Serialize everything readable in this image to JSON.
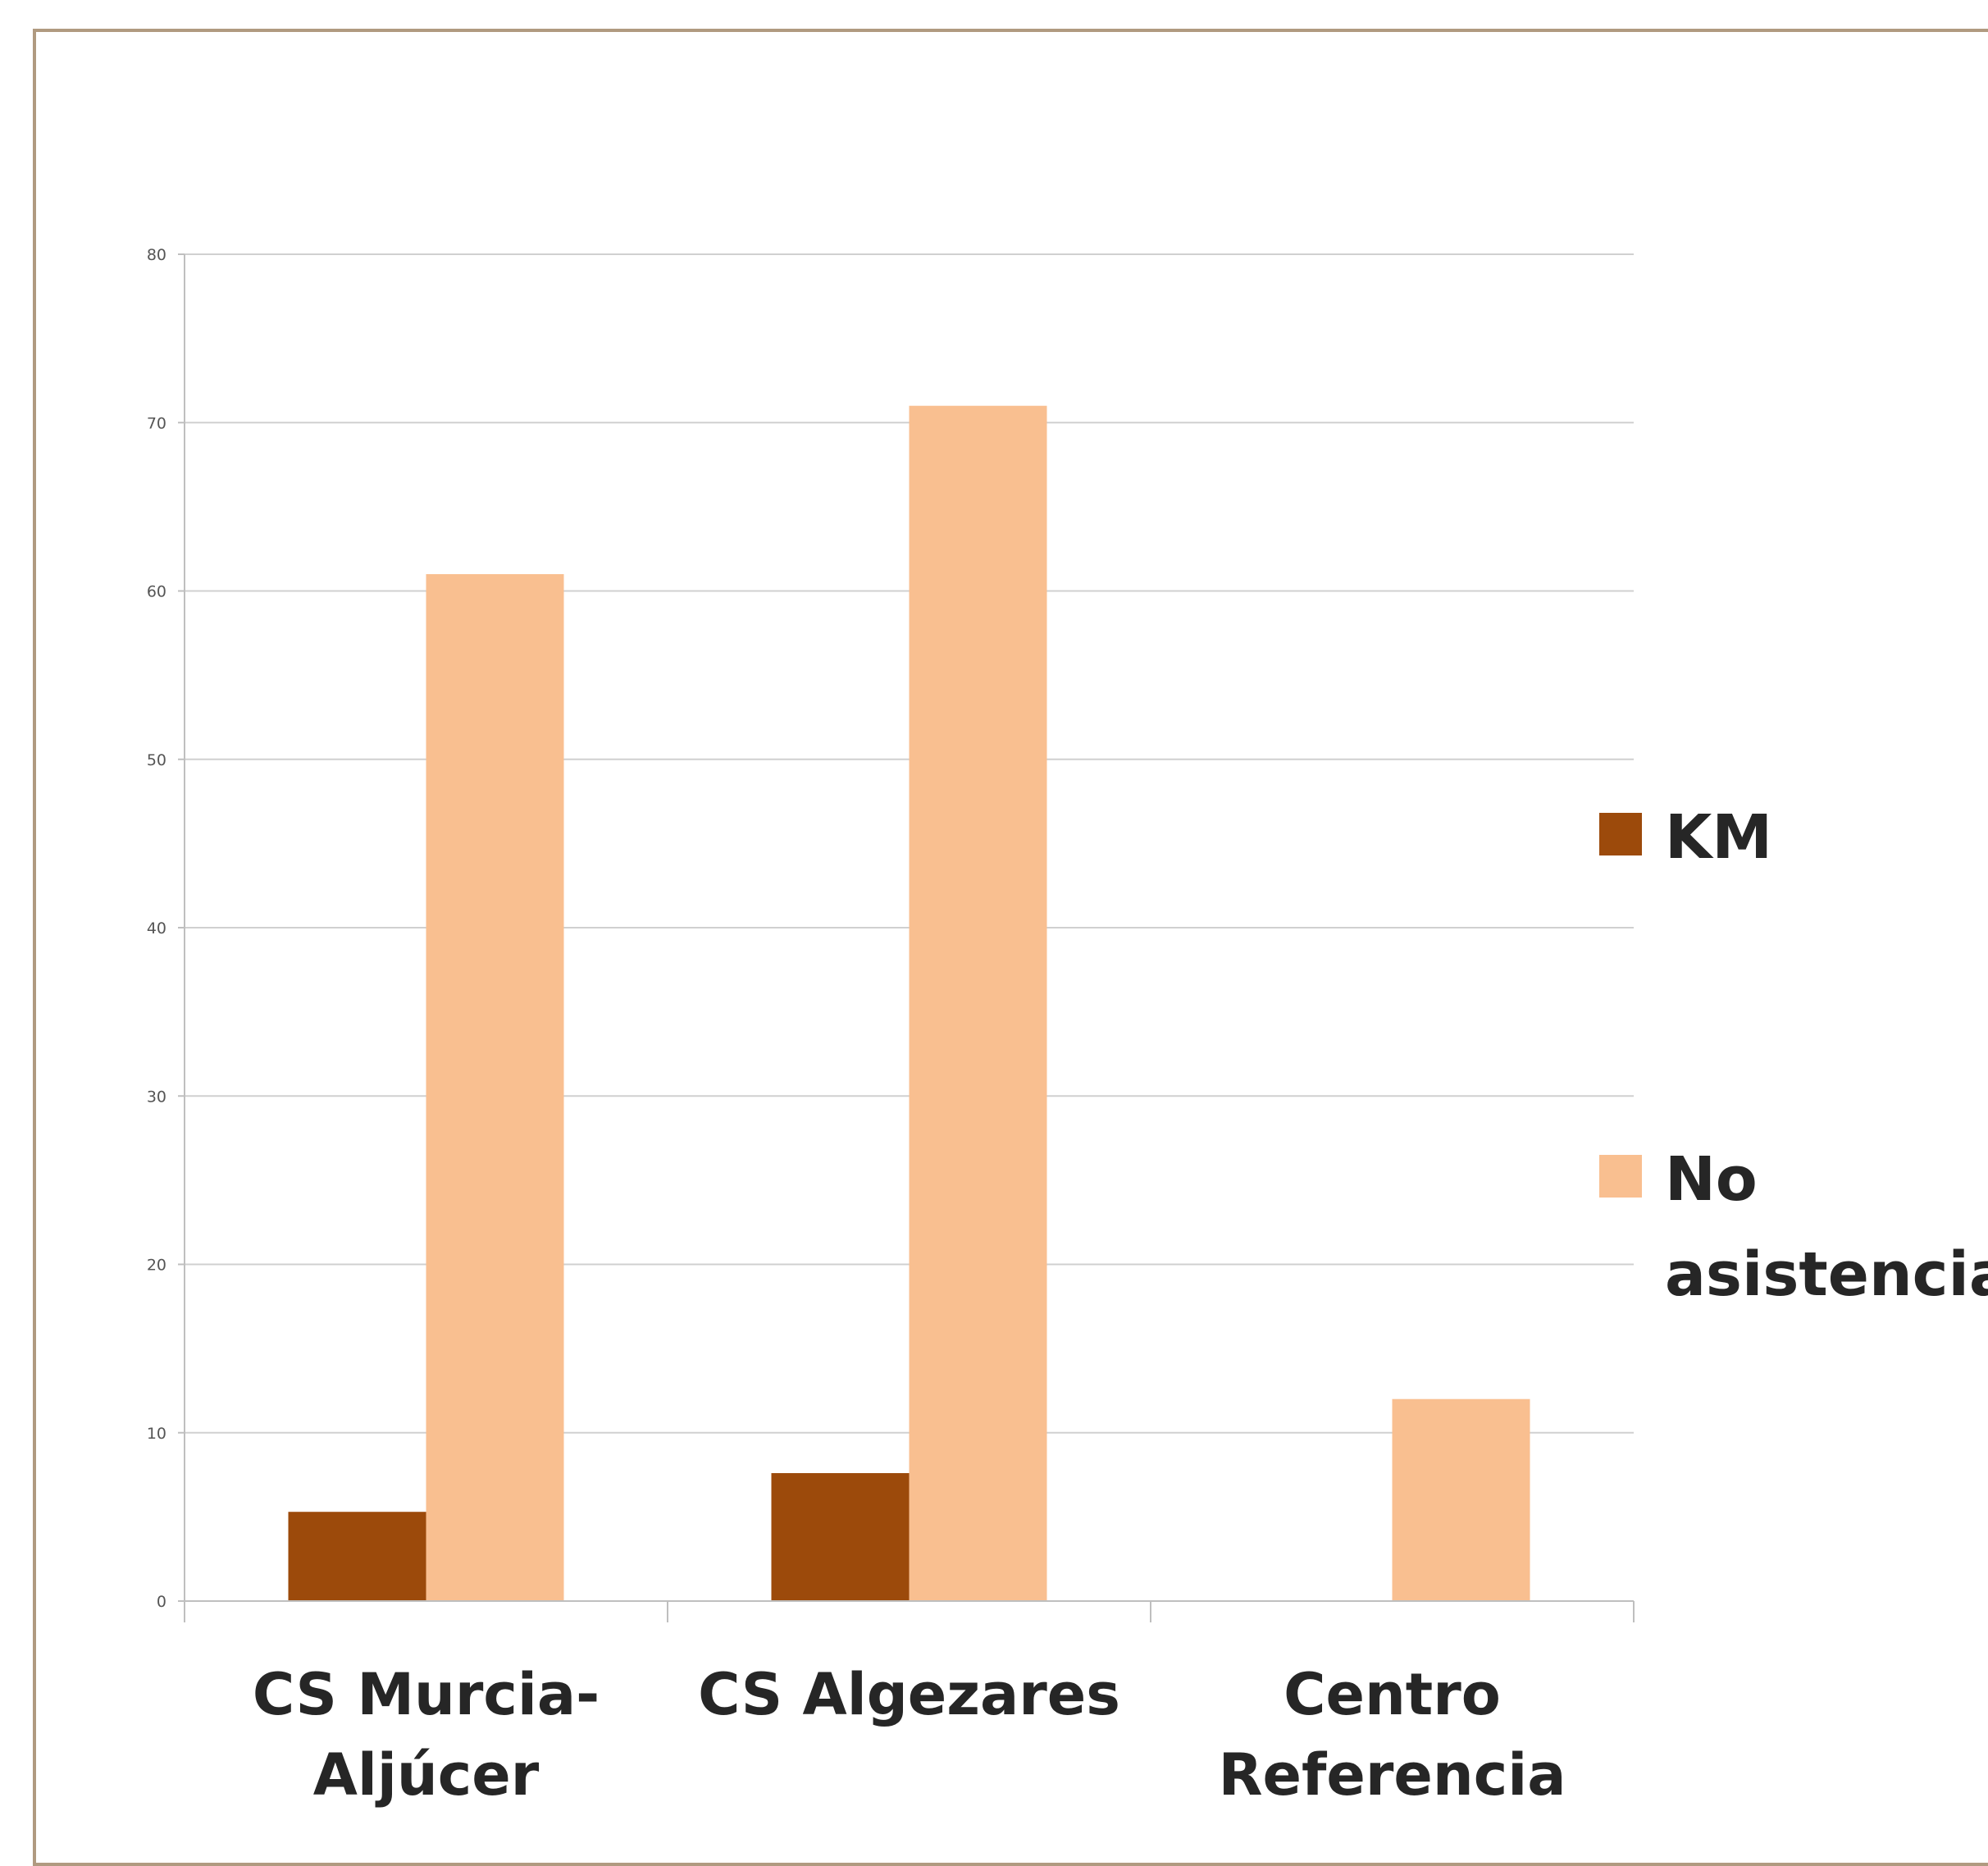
{
  "chart_data": {
    "type": "bar",
    "categories": [
      [
        "CS Murcia-",
        "Aljúcer"
      ],
      [
        "CS Algezares"
      ],
      [
        "Centro",
        "Referencia"
      ]
    ],
    "series": [
      {
        "name": "KM",
        "values": [
          5.3,
          7.6,
          0
        ],
        "color": "#9c4a0b"
      },
      {
        "name": "No asistencia",
        "legend_lines": [
          "No",
          "asistencia"
        ],
        "values": [
          61,
          71,
          12
        ],
        "color": "#f9bf90"
      }
    ],
    "ylim": [
      0,
      80
    ],
    "yticks": [
      0,
      10,
      20,
      30,
      40,
      50,
      60,
      70,
      80
    ],
    "grid": true,
    "legend_position": "right",
    "colors": {
      "gridline": "#d0d0d0",
      "axis": "#bfbfbf",
      "frame": "#b09a80"
    }
  }
}
